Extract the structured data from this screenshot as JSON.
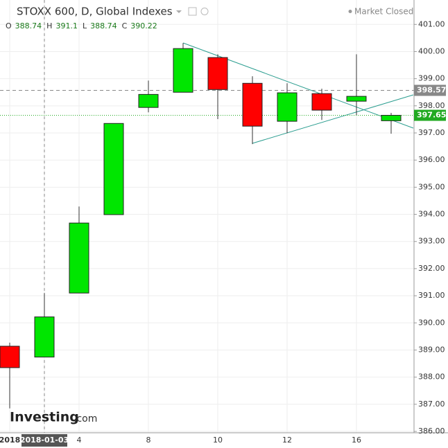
{
  "chart_data": {
    "type": "candlestick",
    "title": "STOXX 600, D, Global Indexes",
    "status": "Market Closed",
    "ohlc_legend": [
      {
        "label": "O",
        "value": 388.74
      },
      {
        "label": "H",
        "value": 391.1
      },
      {
        "label": "L",
        "value": 388.74
      },
      {
        "label": "C",
        "value": 390.22
      }
    ],
    "categories": [
      "2018",
      "2018-01-03",
      "4",
      null,
      "8",
      null,
      "10",
      null,
      "12",
      null,
      "16",
      null
    ],
    "open": [
      389.14,
      388.74,
      391.1,
      393.99,
      397.94,
      398.5,
      399.78,
      398.83,
      397.43,
      398.45,
      398.17,
      397.45
    ],
    "high": [
      389.27,
      391.1,
      394.29,
      397.35,
      398.93,
      400.31,
      399.9,
      399.09,
      398.83,
      398.63,
      399.9,
      397.74
    ],
    "low": [
      386.85,
      388.74,
      391.1,
      393.99,
      397.76,
      398.5,
      397.51,
      396.59,
      396.99,
      397.48,
      397.66,
      396.97
    ],
    "close": [
      388.35,
      390.22,
      393.68,
      397.35,
      398.42,
      400.11,
      398.6,
      397.25,
      398.48,
      397.84,
      398.35,
      397.65
    ],
    "up_color": "#00e600",
    "down_color": "#ff0000",
    "crosshair_index": 1,
    "price_lines": [
      {
        "value": 398.57,
        "color": "#888888",
        "style": "dashed"
      },
      {
        "value": 397.65,
        "color": "#22aa22",
        "style": "dotted"
      }
    ],
    "ylim": [
      385.95,
      401.9
    ],
    "yticks": [
      {
        "value": 386,
        "label": "386.00"
      },
      {
        "value": 387,
        "label": "387.00"
      },
      {
        "value": 388,
        "label": "388.00"
      },
      {
        "value": 389,
        "label": "389.00"
      },
      {
        "value": 390,
        "label": "390.00"
      },
      {
        "value": 391,
        "label": "391.00"
      },
      {
        "value": 392,
        "label": "392.00"
      },
      {
        "value": 393,
        "label": "393.00"
      },
      {
        "value": 394,
        "label": "394.00"
      },
      {
        "value": 395,
        "label": "395.00"
      },
      {
        "value": 396,
        "label": "396.00"
      },
      {
        "value": 397,
        "label": "397.00"
      },
      {
        "value": 398,
        "label": "398.00"
      },
      {
        "value": 399,
        "label": "399.00"
      },
      {
        "value": 400,
        "label": "400.00"
      },
      {
        "value": 401,
        "label": "401.00"
      }
    ],
    "grid": true,
    "watermark": [
      "Investing",
      ".com"
    ]
  }
}
